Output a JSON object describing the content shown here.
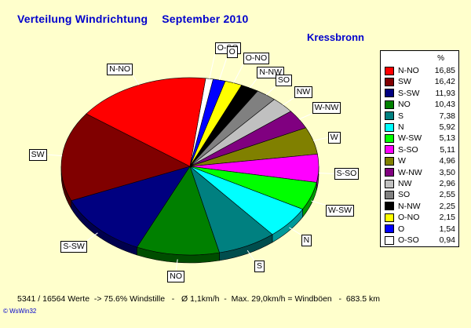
{
  "header": {
    "title": "Verteilung Windrichtung",
    "month": "September 2010",
    "location": "Kressbronn"
  },
  "legend": {
    "unit": "%"
  },
  "chart_data": {
    "type": "pie",
    "categories": [
      "N-NO",
      "SW",
      "S-SW",
      "NO",
      "S",
      "N",
      "W-SW",
      "S-SO",
      "W",
      "W-NW",
      "NW",
      "SO",
      "N-NW",
      "O-NO",
      "O",
      "O-SO"
    ],
    "values": [
      16.85,
      16.42,
      11.93,
      10.43,
      7.38,
      5.92,
      5.13,
      5.11,
      4.96,
      3.5,
      2.96,
      2.55,
      2.25,
      2.15,
      1.54,
      0.94
    ],
    "value_labels": [
      "16,85",
      "16,42",
      "11,93",
      "10,43",
      "7,38",
      "5,92",
      "5,13",
      "5,11",
      "4,96",
      "3,50",
      "2,96",
      "2,55",
      "2,25",
      "2,15",
      "1,54",
      "0,94"
    ],
    "colors": [
      "#ff0000",
      "#800000",
      "#000080",
      "#008000",
      "#008080",
      "#00ffff",
      "#00ff00",
      "#ff00ff",
      "#808000",
      "#800080",
      "#c0c0c0",
      "#808080",
      "#000000",
      "#ffff00",
      "#0000ff",
      "#ffffff"
    ],
    "slice_order": [
      "O-SO",
      "O",
      "O-NO",
      "N-NW",
      "SO",
      "NW",
      "W-NW",
      "W",
      "S-SO",
      "W-SW",
      "N",
      "S",
      "NO",
      "S-SW",
      "SW",
      "N-NO"
    ],
    "legend_placement": "right",
    "style": "3d-tilted"
  },
  "footer": {
    "stats": "5341 / 16564 Werte  -> 75.6% Windstille   -   Ø 1,1km/h  -  Max. 29,0km/h = Windböen   -  683.5 km",
    "credit": "© WsWin32"
  }
}
